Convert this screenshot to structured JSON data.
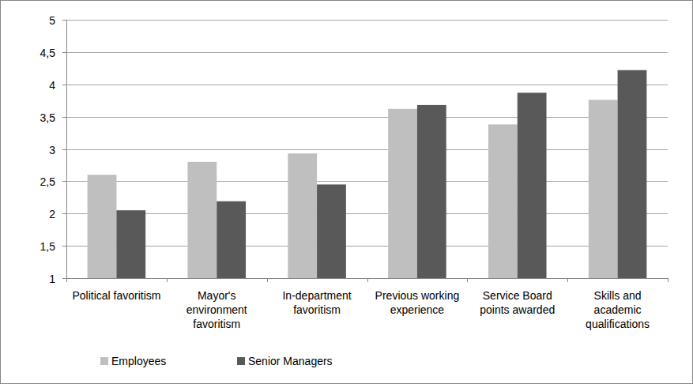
{
  "chart_data": {
    "type": "bar",
    "categories": [
      "Political favoritism",
      "Mayor's environment favoritism",
      "In-department favoritism",
      "Previous working experience",
      "Service Board points awarded",
      "Skills and academic qualifications"
    ],
    "series": [
      {
        "name": "Employees",
        "color": "#bfbfbf",
        "values": [
          2.6,
          2.8,
          2.93,
          3.62,
          3.38,
          3.76
        ]
      },
      {
        "name": "Senior Managers",
        "color": "#595959",
        "values": [
          2.05,
          2.19,
          2.45,
          3.68,
          3.87,
          4.22
        ]
      }
    ],
    "ylim": [
      1,
      5
    ],
    "yticks": [
      1,
      {
        "value": 1.5,
        "label": "1,5"
      },
      2,
      {
        "value": 2.5,
        "label": "2,5"
      },
      3,
      {
        "value": 3.5,
        "label": "3,5"
      },
      4,
      {
        "value": 4.5,
        "label": "4,5"
      },
      5
    ],
    "grid": true,
    "legend": "bottom"
  }
}
